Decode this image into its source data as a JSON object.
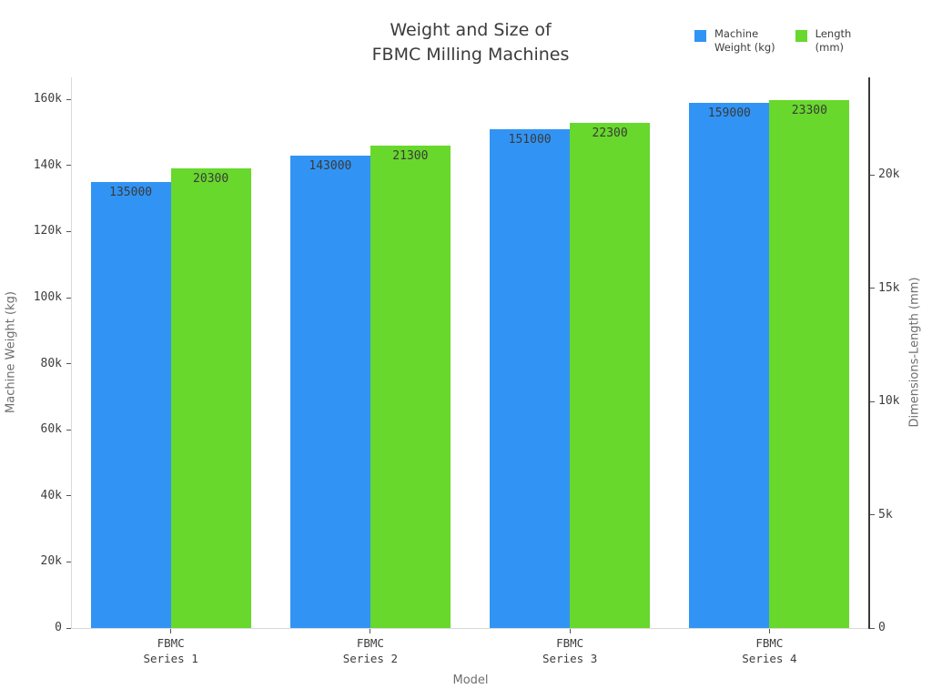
{
  "figure": {
    "title_lines": [
      "Weight and Size of",
      "FBMC Milling Machines"
    ],
    "xlabel": "Model"
  },
  "legend": {
    "items": [
      {
        "name": "machine-weight",
        "label_lines": [
          "Machine",
          "Weight (kg)"
        ],
        "color": "#3194f5"
      },
      {
        "name": "length",
        "label_lines": [
          "Length",
          "(mm)"
        ],
        "color": "#68d82c"
      }
    ]
  },
  "chart_data": {
    "type": "bar",
    "title": "Weight and Size of FBMC Milling Machines",
    "xlabel": "Model",
    "categories": [
      "FBMC Series 1",
      "FBMC Series 2",
      "FBMC Series 3",
      "FBMC Series 4"
    ],
    "category_label_lines": [
      [
        "FBMC",
        "Series 1"
      ],
      [
        "FBMC",
        "Series 2"
      ],
      [
        "FBMC",
        "Series 3"
      ],
      [
        "FBMC",
        "Series 4"
      ]
    ],
    "series": [
      {
        "name": "Machine Weight (kg)",
        "axis": "left",
        "color": "#3194f5",
        "values": [
          135000,
          143000,
          151000,
          159000
        ],
        "value_labels": [
          "135000",
          "143000",
          "151000",
          "159000"
        ]
      },
      {
        "name": "Length (mm)",
        "axis": "right",
        "color": "#68d82c",
        "values": [
          20300,
          21300,
          22300,
          23300
        ],
        "value_labels": [
          "20300",
          "21300",
          "22300",
          "23300"
        ]
      }
    ],
    "left_axis": {
      "label": "Machine Weight (kg)",
      "tick_labels": [
        "0",
        "20k",
        "40k",
        "60k",
        "80k",
        "100k",
        "120k",
        "140k",
        "160k"
      ],
      "tick_values": [
        0,
        20000,
        40000,
        60000,
        80000,
        100000,
        120000,
        140000,
        160000
      ],
      "range": [
        0,
        166667
      ]
    },
    "right_axis": {
      "label": "Dimensions-Length (mm)",
      "tick_labels": [
        "0",
        "5k",
        "10k",
        "15k",
        "20k"
      ],
      "tick_values": [
        0,
        5000,
        10000,
        15000,
        20000
      ],
      "range": [
        0,
        24300
      ]
    },
    "grid": false,
    "legend_position": "top-right"
  }
}
